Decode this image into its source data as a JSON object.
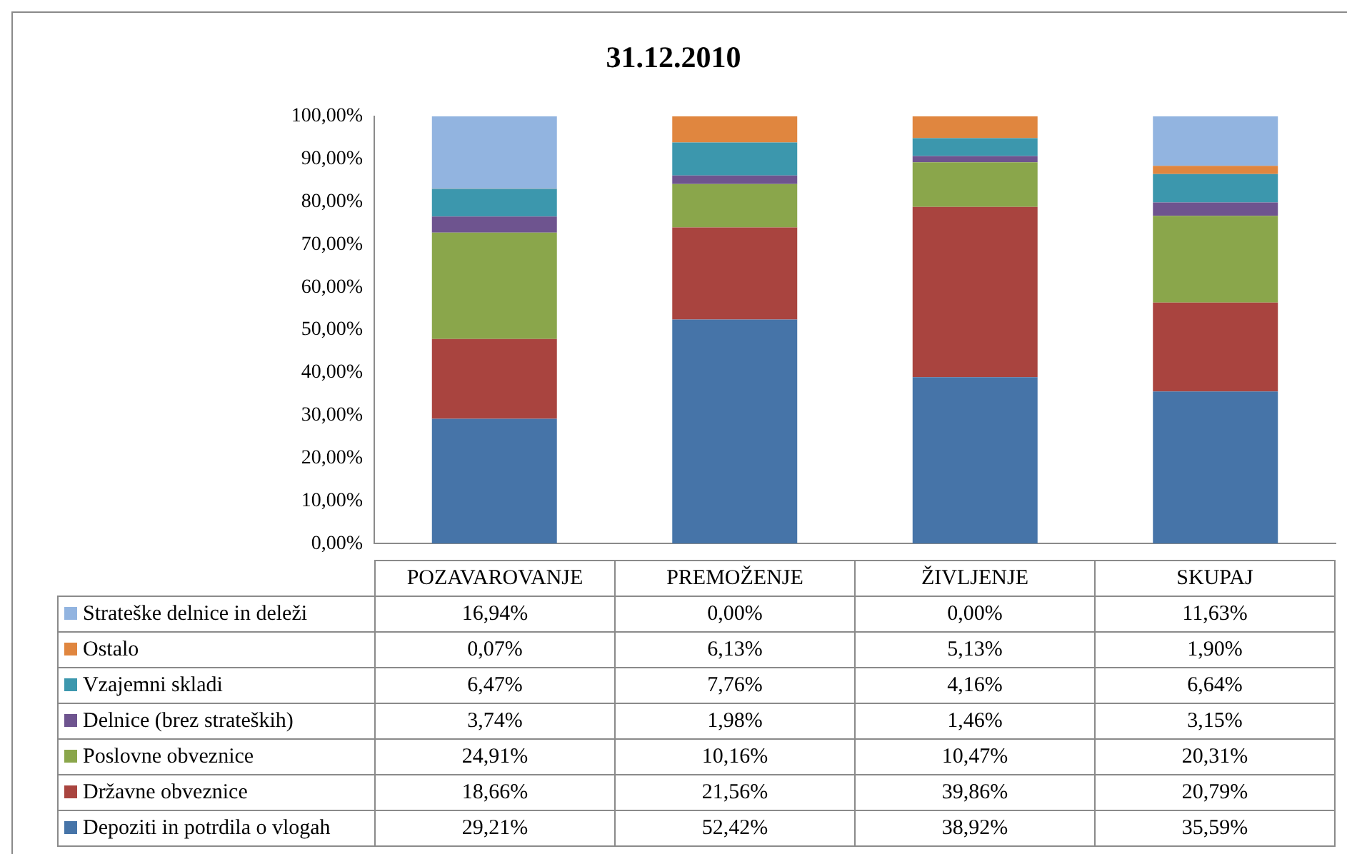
{
  "chart_data": {
    "type": "bar",
    "title": "31.12.2010",
    "stacked": true,
    "categories": [
      "POZAVAROVANJE",
      "PREMOŽENJE",
      "ŽIVLJENJE",
      "SKUPAJ"
    ],
    "ylim": [
      0,
      100
    ],
    "yticks": [
      {
        "value": 0,
        "label": "0,00%"
      },
      {
        "value": 10,
        "label": "10,00%"
      },
      {
        "value": 20,
        "label": "20,00%"
      },
      {
        "value": 30,
        "label": "30,00%"
      },
      {
        "value": 40,
        "label": "40,00%"
      },
      {
        "value": 50,
        "label": "50,00%"
      },
      {
        "value": 60,
        "label": "60,00%"
      },
      {
        "value": 70,
        "label": "70,00%"
      },
      {
        "value": 80,
        "label": "80,00%"
      },
      {
        "value": 90,
        "label": "90,00%"
      },
      {
        "value": 100,
        "label": "100,00%"
      }
    ],
    "grid": false,
    "legend": "bottom",
    "series": [
      {
        "name": "Depoziti in potrdila o vlogah",
        "color": "#4674a8",
        "values": [
          29.21,
          52.42,
          38.92,
          35.59
        ],
        "value_labels": [
          "29,21%",
          "52,42%",
          "38,92%",
          "35,59%"
        ]
      },
      {
        "name": "Državne obveznice",
        "color": "#a9443f",
        "values": [
          18.66,
          21.56,
          39.86,
          20.79
        ],
        "value_labels": [
          "18,66%",
          "21,56%",
          "39,86%",
          "20,79%"
        ]
      },
      {
        "name": "Poslovne obveznice",
        "color": "#8aa64b",
        "values": [
          24.91,
          10.16,
          10.47,
          20.31
        ],
        "value_labels": [
          "24,91%",
          "10,16%",
          "10,47%",
          "20,31%"
        ]
      },
      {
        "name": "Delnice (brez strateških)",
        "color": "#6e548f",
        "values": [
          3.74,
          1.98,
          1.46,
          3.15
        ],
        "value_labels": [
          "3,74%",
          "1,98%",
          "1,46%",
          "3,15%"
        ]
      },
      {
        "name": "Vzajemni skladi",
        "color": "#3c97ad",
        "values": [
          6.47,
          7.76,
          4.16,
          6.64
        ],
        "value_labels": [
          "6,47%",
          "7,76%",
          "4,16%",
          "6,64%"
        ]
      },
      {
        "name": "Ostalo",
        "color": "#e0863f",
        "values": [
          0.07,
          6.13,
          5.13,
          1.9
        ],
        "value_labels": [
          "0,07%",
          "6,13%",
          "5,13%",
          "1,90%"
        ]
      },
      {
        "name": "Strateške delnice in deleži",
        "color": "#92b4e0",
        "values": [
          16.94,
          0,
          0,
          11.63
        ],
        "value_labels": [
          "16,94%",
          "0,00%",
          "0,00%",
          "11,63%"
        ]
      }
    ]
  }
}
